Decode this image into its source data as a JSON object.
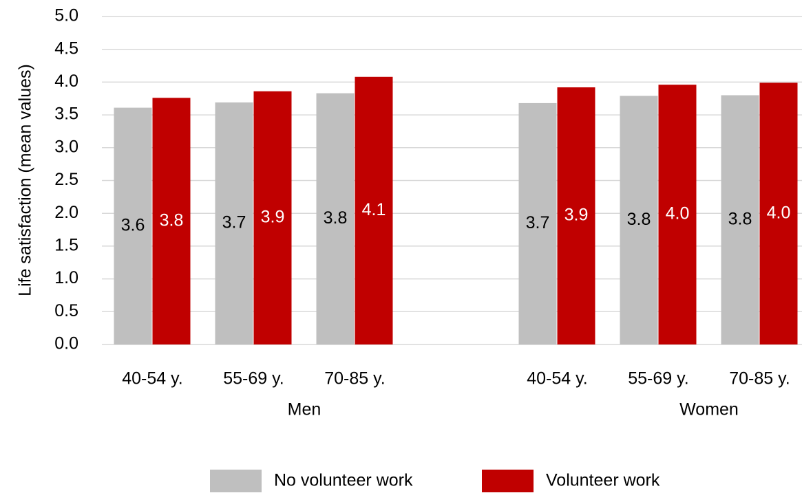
{
  "chart_data": {
    "type": "bar",
    "ylabel": "Life satisfaction (mean values)",
    "categories": [
      "40-54 y.",
      "55-69 y.",
      "70-85 y.",
      null,
      "40-54 y.",
      "55-69 y.",
      "70-85 y."
    ],
    "groups": [
      "Men",
      "Women"
    ],
    "series": [
      {
        "name": "No volunteer work",
        "color": "#bfbfbf",
        "label_color": "#000000",
        "values": [
          3.61,
          3.69,
          3.83,
          null,
          3.68,
          3.79,
          3.8
        ],
        "value_labels": [
          "3.6",
          "3.7",
          "3.8",
          null,
          "3.7",
          "3.8",
          "3.8"
        ]
      },
      {
        "name": "Volunteer work",
        "color": "#c00000",
        "label_color": "#ffffff",
        "values": [
          3.76,
          3.86,
          4.08,
          null,
          3.92,
          3.96,
          3.99
        ],
        "value_labels": [
          "3.8",
          "3.9",
          "4.1",
          null,
          "3.9",
          "4.0",
          "4.0"
        ]
      }
    ],
    "ylim": [
      0,
      5
    ],
    "yticks": [
      {
        "value": 0,
        "label": "0.0"
      },
      {
        "value": 0.5,
        "label": "0.5"
      },
      {
        "value": 1,
        "label": "1.0"
      },
      {
        "value": 1.5,
        "label": "1.5"
      },
      {
        "value": 2,
        "label": "2.0"
      },
      {
        "value": 2.5,
        "label": "2.5"
      },
      {
        "value": 3,
        "label": "3.0"
      },
      {
        "value": 3.5,
        "label": "3.5"
      },
      {
        "value": 4,
        "label": "4.0"
      },
      {
        "value": 4.5,
        "label": "4.5"
      },
      {
        "value": 5,
        "label": "5.0"
      }
    ],
    "grid": true,
    "legend": "bottom"
  }
}
